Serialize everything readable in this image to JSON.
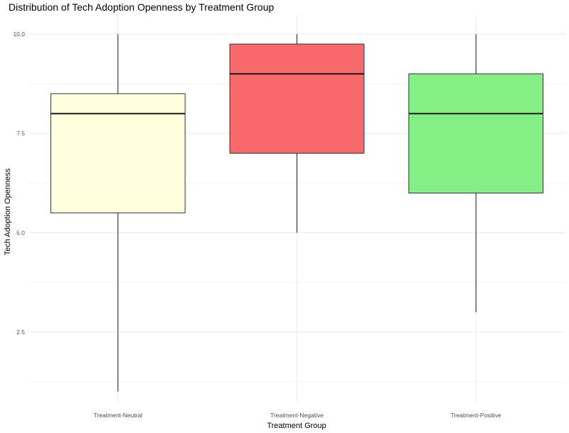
{
  "chart_data": {
    "type": "boxplot",
    "title": "Distribution of Tech Adoption Openness by Treatment Group",
    "xlabel": "Treatment Group",
    "ylabel": "Tech Adoption Openness",
    "ylim": [
      1,
      10
    ],
    "y_ticks": [
      2.5,
      5.0,
      7.5,
      10.0
    ],
    "y_tick_labels": [
      "2.5",
      "5.0",
      "7.5",
      "10.0"
    ],
    "grid": true,
    "legend": "none",
    "categories": [
      "Treatment-Neutral",
      "Treatment-Negative",
      "Treatment-Positive"
    ],
    "boxes": [
      {
        "category": "Treatment-Neutral",
        "min": 1,
        "q1": 5.5,
        "median": 8,
        "q3": 8.5,
        "max": 10,
        "color": "#FFFFDD"
      },
      {
        "category": "Treatment-Negative",
        "min": 5,
        "q1": 7,
        "median": 9,
        "q3": 9.75,
        "max": 10,
        "color": "#F8696B"
      },
      {
        "category": "Treatment-Positive",
        "min": 3,
        "q1": 6,
        "median": 8,
        "q3": 9,
        "max": 10,
        "color": "#84EF84"
      }
    ]
  }
}
